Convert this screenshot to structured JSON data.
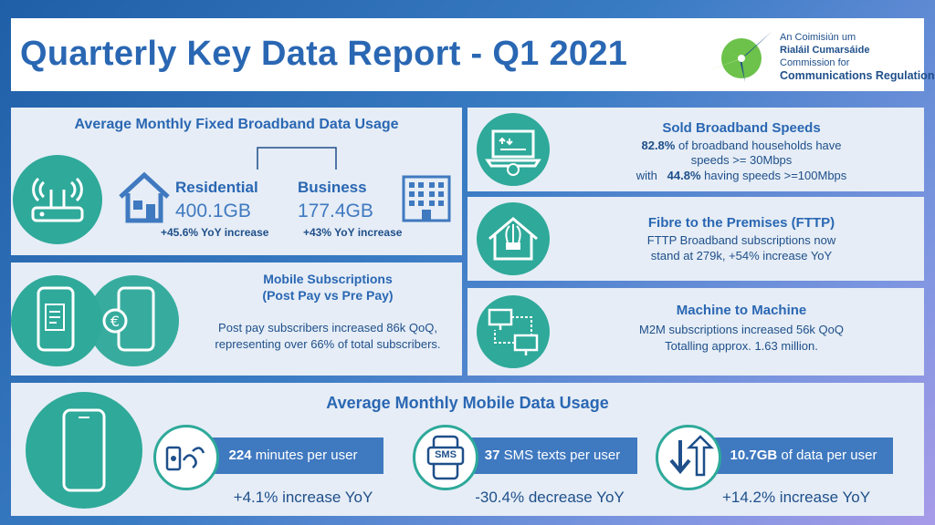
{
  "header": {
    "title": "Quarterly Key Data Report - Q1 2021",
    "logo_lines": [
      "An Coimisiún um",
      "Rialáil Cumarsáide",
      "Commission for",
      "Communications Regulation"
    ]
  },
  "fixed_broadband": {
    "title": "Average Monthly Fixed Broadband Data Usage",
    "residential": {
      "label": "Residential",
      "value": "400.1GB",
      "change": "+45.6% YoY increase"
    },
    "business": {
      "label": "Business",
      "value": "177.4GB",
      "change": "+43% YoY increase"
    }
  },
  "sold_speeds": {
    "title": "Sold Broadband  Speeds",
    "line1_bold": "82.8%",
    "line1_rest": " of broadband households have",
    "line2": "speeds >= 30Mbps",
    "line3_pre": "with   ",
    "line3_bold": "44.8%",
    "line3_rest": " having speeds >=100Mbps"
  },
  "fttp": {
    "title": "Fibre to the Premises (FTTP)",
    "line1": "FTTP Broadband subscriptions now",
    "line2": "stand at 279k, +54% increase YoY"
  },
  "mobile_subs": {
    "title_line1": "Mobile Subscriptions",
    "title_line2": "(Post Pay vs Pre Pay)",
    "line1": "Post pay subscribers increased 86k QoQ,",
    "line2": "representing over 66% of total subscribers."
  },
  "m2m": {
    "title": "Machine to Machine",
    "line1": "M2M subscriptions increased 56k QoQ",
    "line2": "Totalling approx. 1.63 million."
  },
  "mobile_data": {
    "title": "Average Monthly Mobile Data Usage",
    "minutes": {
      "bold": "224",
      "rest": " minutes per user",
      "change": "+4.1% increase YoY"
    },
    "sms": {
      "bold": "37",
      "rest": " SMS texts per user",
      "change": "-30.4% decrease YoY",
      "icon_text": "SMS"
    },
    "data": {
      "bold": "10.7GB",
      "rest": " of data per user",
      "change": "+14.2% increase YoY"
    }
  },
  "colors": {
    "accent": "#2a67b3",
    "teal": "#2ea99a",
    "bar": "#3f79c0",
    "panel": "#e6edf6"
  }
}
